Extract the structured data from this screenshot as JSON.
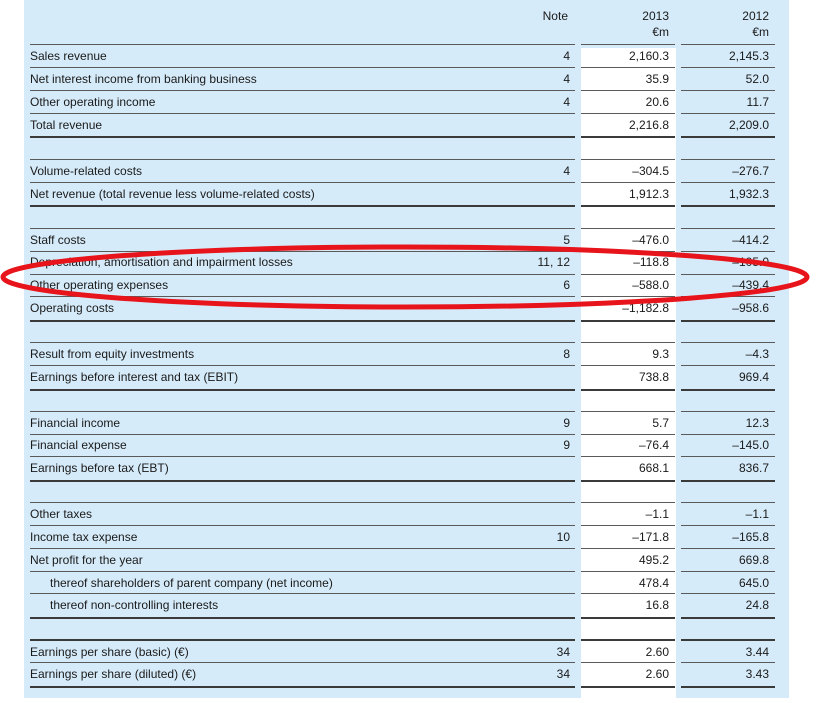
{
  "header": {
    "note": "Note",
    "year1": "2013",
    "year2": "2012",
    "unit1": "€m",
    "unit2": "€m"
  },
  "rows": [
    {
      "label": "Sales revenue",
      "note": "4",
      "v2013": "2,160.3",
      "v2012": "2,145.3"
    },
    {
      "label": "Net interest income from banking business",
      "note": "4",
      "v2013": "35.9",
      "v2012": "52.0"
    },
    {
      "label": "Other operating income",
      "note": "4",
      "v2013": "20.6",
      "v2012": "11.7"
    },
    {
      "label": "Total revenue",
      "note": "",
      "v2013": "2,216.8",
      "v2012": "2,209.0"
    },
    {
      "label": "Volume-related costs",
      "note": "4",
      "v2013": "–304.5",
      "v2012": "–276.7"
    },
    {
      "label": "Net revenue (total revenue less volume-related costs)",
      "note": "",
      "v2013": "1,912.3",
      "v2012": "1,932.3"
    },
    {
      "label": "Staff costs",
      "note": "5",
      "v2013": "–476.0",
      "v2012": "–414.2"
    },
    {
      "label": "Depreciation, amortisation and impairment losses",
      "note": "11, 12",
      "v2013": "–118.8",
      "v2012": "–105.0"
    },
    {
      "label": "Other operating expenses",
      "note": "6",
      "v2013": "–588.0",
      "v2012": "–439.4"
    },
    {
      "label": "Operating costs",
      "note": "",
      "v2013": "–1,182.8",
      "v2012": "–958.6"
    },
    {
      "label": "Result from equity investments",
      "note": "8",
      "v2013": "9.3",
      "v2012": "–4.3"
    },
    {
      "label": "Earnings before interest and tax (EBIT)",
      "note": "",
      "v2013": "738.8",
      "v2012": "969.4"
    },
    {
      "label": "Financial income",
      "note": "9",
      "v2013": "5.7",
      "v2012": "12.3"
    },
    {
      "label": "Financial expense",
      "note": "9",
      "v2013": "–76.4",
      "v2012": "–145.0"
    },
    {
      "label": "Earnings before tax (EBT)",
      "note": "",
      "v2013": "668.1",
      "v2012": "836.7"
    },
    {
      "label": "Other taxes",
      "note": "",
      "v2013": "–1.1",
      "v2012": "–1.1"
    },
    {
      "label": "Income tax expense",
      "note": "10",
      "v2013": "–171.8",
      "v2012": "–165.8"
    },
    {
      "label": "Net profit for the year",
      "note": "",
      "v2013": "495.2",
      "v2012": "669.8"
    },
    {
      "label": "thereof shareholders of parent company (net income)",
      "note": "",
      "v2013": "478.4",
      "v2012": "645.0"
    },
    {
      "label": "thereof non-controlling interests",
      "note": "",
      "v2013": "16.8",
      "v2012": "24.8"
    },
    {
      "label": "Earnings per share (basic) (€)",
      "note": "34",
      "v2013": "2.60",
      "v2012": "3.44"
    },
    {
      "label": "Earnings per share (diluted) (€)",
      "note": "34",
      "v2013": "2.60",
      "v2012": "3.43"
    }
  ],
  "annotation_color": "#e8141b"
}
